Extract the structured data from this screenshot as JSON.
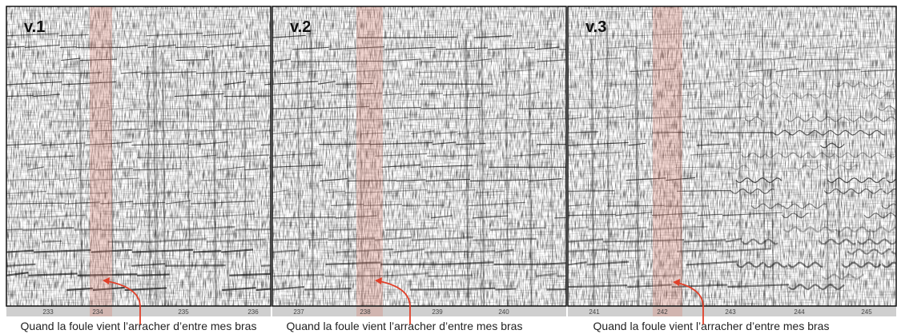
{
  "panels": [
    {
      "label": "v.1",
      "ticks": [
        "233",
        "234",
        "235",
        "236"
      ],
      "caption": "Quand la foule vient l’arracher d’entre mes bras"
    },
    {
      "label": "v.2",
      "ticks": [
        "237",
        "238",
        "239",
        "240"
      ],
      "caption": "Quand la foule vient l’arracher d’entre mes bras"
    },
    {
      "label": "v.3",
      "ticks": [
        "241",
        "242",
        "243",
        "244",
        "245"
      ],
      "caption": "Quand la foule vient l’arracher d’entre mes bras"
    }
  ]
}
